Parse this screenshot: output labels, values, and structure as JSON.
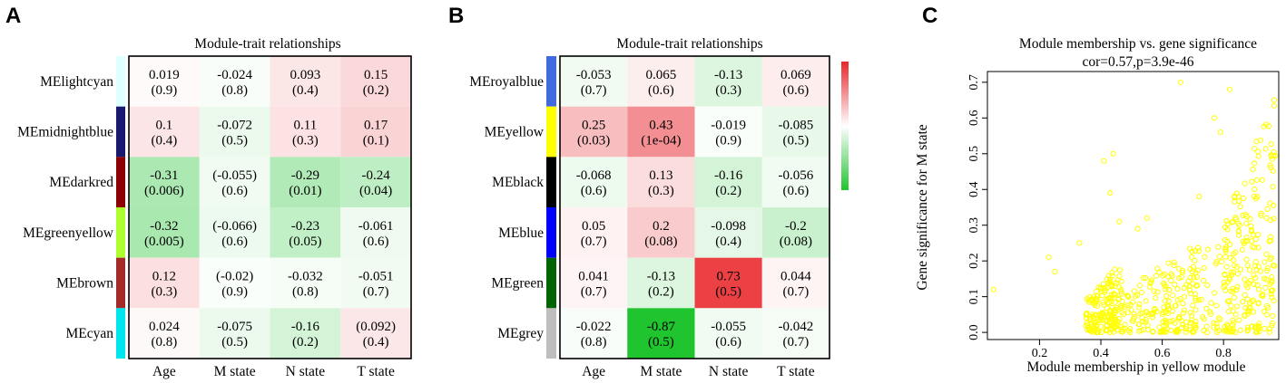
{
  "chart_data": [
    {
      "panel": "A",
      "type": "heatmap",
      "title": "Module-trait relationships",
      "columns": [
        "Age",
        "M state",
        "N state",
        "T state"
      ],
      "rows": [
        {
          "label": "MElightcyan",
          "color": "#e0ffff",
          "cells": [
            {
              "r": "0.019",
              "p": "(0.9)"
            },
            {
              "r": "-0.024",
              "p": "(0.8)"
            },
            {
              "r": "0.093",
              "p": "(0.4)"
            },
            {
              "r": "0.15",
              "p": "(0.2)"
            }
          ]
        },
        {
          "label": "MEmidnightblue",
          "color": "#191970",
          "cells": [
            {
              "r": "0.1",
              "p": "(0.4)"
            },
            {
              "r": "-0.072",
              "p": "(0.5)"
            },
            {
              "r": "0.11",
              "p": "(0.3)"
            },
            {
              "r": "0.17",
              "p": "(0.1)"
            }
          ]
        },
        {
          "label": "MEdarkred",
          "color": "#8b0000",
          "cells": [
            {
              "r": "-0.31",
              "p": "(0.006)"
            },
            {
              "r": "(-0.055)",
              "p": "(0.6)"
            },
            {
              "r": "-0.29",
              "p": "(0.01)"
            },
            {
              "r": "-0.24",
              "p": "(0.04)"
            }
          ]
        },
        {
          "label": "MEgreenyellow",
          "color": "#adff2f",
          "cells": [
            {
              "r": "-0.32",
              "p": "(0.005)"
            },
            {
              "r": "(-0.066)",
              "p": "(0.6)"
            },
            {
              "r": "-0.23",
              "p": "(0.05)"
            },
            {
              "r": "-0.061",
              "p": "(0.6)"
            }
          ]
        },
        {
          "label": "MEbrown",
          "color": "#a52a2a",
          "cells": [
            {
              "r": "0.12",
              "p": "(0.3)"
            },
            {
              "r": "(-0.02)",
              "p": "(0.9)"
            },
            {
              "r": "-0.032",
              "p": "(0.8)"
            },
            {
              "r": "-0.051",
              "p": "(0.7)"
            }
          ]
        },
        {
          "label": "MEcyan",
          "color": "#00e5ee",
          "cells": [
            {
              "r": "0.024",
              "p": "(0.8)"
            },
            {
              "r": "-0.075",
              "p": "(0.5)"
            },
            {
              "r": "-0.16",
              "p": "(0.2)"
            },
            {
              "r": "(0.092)",
              "p": "(0.4)"
            }
          ]
        }
      ]
    },
    {
      "panel": "B",
      "type": "heatmap",
      "title": "Module-trait relationships",
      "columns": [
        "Age",
        "M state",
        "N state",
        "T state"
      ],
      "color_scale": {
        "low": "#1fc42f",
        "mid": "#ffffff",
        "high": "#e8262b",
        "range": [
          -1,
          1
        ]
      },
      "rows": [
        {
          "label": "MEroyalblue",
          "color": "#4169e1",
          "cells": [
            {
              "r": "-0.053",
              "p": "(0.7)"
            },
            {
              "r": "0.065",
              "p": "(0.6)"
            },
            {
              "r": "-0.13",
              "p": "(0.3)"
            },
            {
              "r": "0.069",
              "p": "(0.6)"
            }
          ]
        },
        {
          "label": "MEyellow",
          "color": "#ffff00",
          "cells": [
            {
              "r": "0.25",
              "p": "(0.03)"
            },
            {
              "r": "0.43",
              "p": "(1e-04)"
            },
            {
              "r": "-0.019",
              "p": "(0.9)"
            },
            {
              "r": "-0.085",
              "p": "(0.5)"
            }
          ]
        },
        {
          "label": "MEblack",
          "color": "#000000",
          "cells": [
            {
              "r": "-0.068",
              "p": "(0.6)"
            },
            {
              "r": "0.13",
              "p": "(0.3)"
            },
            {
              "r": "-0.16",
              "p": "(0.2)"
            },
            {
              "r": "-0.056",
              "p": "(0.6)"
            }
          ]
        },
        {
          "label": "MEblue",
          "color": "#0000ff",
          "cells": [
            {
              "r": "0.05",
              "p": "(0.7)"
            },
            {
              "r": "0.2",
              "p": "(0.08)"
            },
            {
              "r": "-0.098",
              "p": "(0.4)"
            },
            {
              "r": "-0.2",
              "p": "(0.08)"
            }
          ]
        },
        {
          "label": "MEgreen",
          "color": "#006400",
          "cells": [
            {
              "r": "0.041",
              "p": "(0.7)"
            },
            {
              "r": "-0.13",
              "p": "(0.2)"
            },
            {
              "r": "0.73",
              "p": "(0.5)"
            },
            {
              "r": "0.044",
              "p": "(0.7)"
            }
          ]
        },
        {
          "label": "MEgrey",
          "color": "#bebebe",
          "cells": [
            {
              "r": "-0.022",
              "p": "(0.8)"
            },
            {
              "r": "-0.87",
              "p": "(0.5)"
            },
            {
              "r": "-0.055",
              "p": "(0.6)"
            },
            {
              "r": "-0.042",
              "p": "(0.7)"
            }
          ]
        }
      ]
    },
    {
      "panel": "C",
      "type": "scatter",
      "title": "Module membership vs. gene significance",
      "subtitle": "cor=0.57,p=3.9e-46",
      "xlabel": "Module membership in yellow module",
      "ylabel": "Gene significance for M state",
      "xlim": [
        0.03,
        0.98
      ],
      "ylim": [
        -0.02,
        0.73
      ],
      "xticks": [
        0.2,
        0.4,
        0.6,
        0.8
      ],
      "yticks": [
        0.0,
        0.1,
        0.2,
        0.3,
        0.4,
        0.5,
        0.6,
        0.7
      ],
      "point_color": "#ffff00",
      "clusters": [
        {
          "x_range": [
            0.35,
            0.47
          ],
          "y_range": [
            0.0,
            0.2
          ],
          "n": 170
        },
        {
          "x_range": [
            0.45,
            0.72
          ],
          "y_range": [
            0.0,
            0.25
          ],
          "n": 150
        },
        {
          "x_range": [
            0.6,
            0.8
          ],
          "y_range": [
            0.0,
            0.32
          ],
          "n": 80
        },
        {
          "x_range": [
            0.8,
            0.97
          ],
          "y_range": [
            0.0,
            0.7
          ],
          "n": 230
        }
      ],
      "points": [
        {
          "x": 0.05,
          "y": 0.12
        },
        {
          "x": 0.23,
          "y": 0.21
        },
        {
          "x": 0.25,
          "y": 0.17
        },
        {
          "x": 0.33,
          "y": 0.25
        },
        {
          "x": 0.41,
          "y": 0.48
        },
        {
          "x": 0.44,
          "y": 0.5
        },
        {
          "x": 0.43,
          "y": 0.39
        },
        {
          "x": 0.46,
          "y": 0.31
        },
        {
          "x": 0.66,
          "y": 0.7
        },
        {
          "x": 0.52,
          "y": 0.29
        },
        {
          "x": 0.55,
          "y": 0.32
        },
        {
          "x": 0.72,
          "y": 0.38
        },
        {
          "x": 0.79,
          "y": 0.56
        },
        {
          "x": 0.77,
          "y": 0.6
        },
        {
          "x": 0.82,
          "y": 0.68
        }
      ]
    }
  ]
}
